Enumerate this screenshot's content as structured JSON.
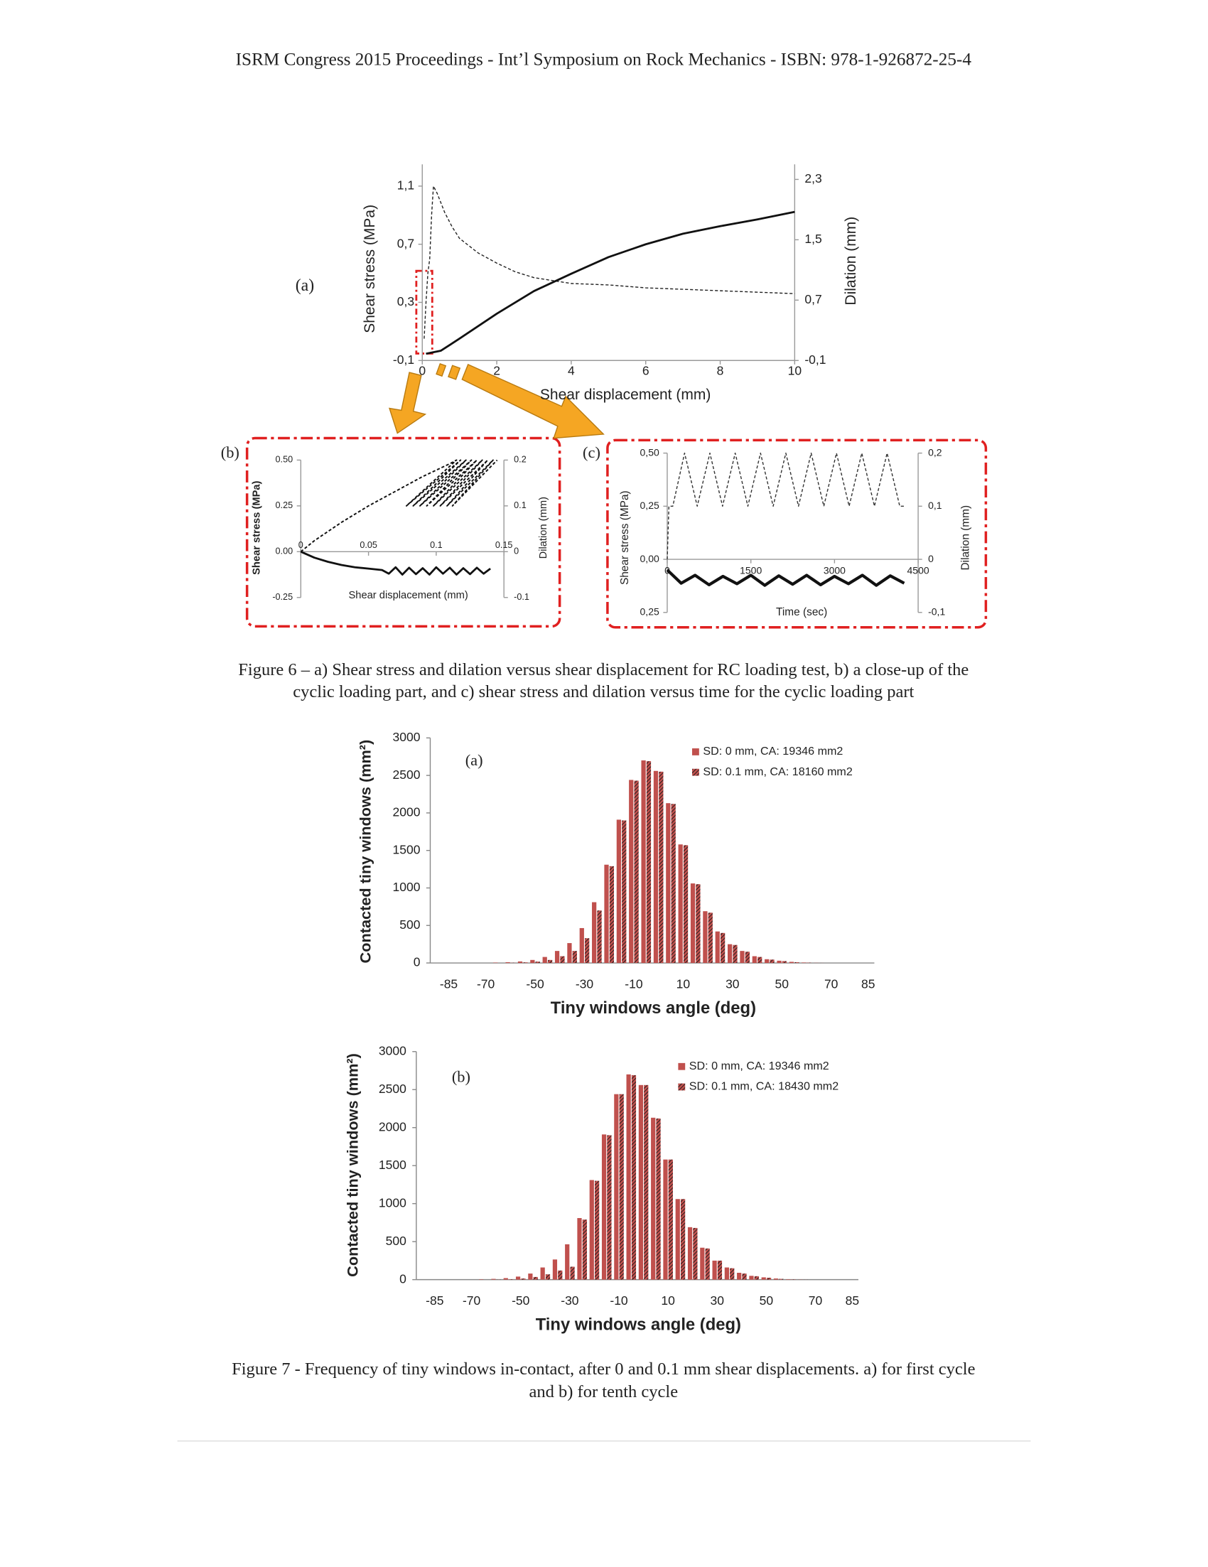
{
  "header": "ISRM Congress 2015 Proceedings - Int’l Symposium on Rock Mechanics - ISBN: 978-1-926872-25-4",
  "chart_data": [
    {
      "type": "line",
      "panel_label": "(a)",
      "x_label": "Shear displacement (mm)",
      "y_label": "Shear stress (MPa)",
      "y2_label": "Dilation (mm)",
      "xlim": [
        0,
        10
      ],
      "xticks": [
        0,
        2,
        4,
        6,
        8,
        10
      ],
      "ylim": [
        -0.1,
        1.25
      ],
      "yticks": [
        {
          "value": -0.1,
          "label": "-0,1"
        },
        {
          "value": 0.3,
          "label": "0,3"
        },
        {
          "value": 0.7,
          "label": "0,7"
        },
        {
          "value": 1.1,
          "label": "1,1"
        }
      ],
      "y2lim": [
        -0.1,
        2.5
      ],
      "y2ticks": [
        {
          "value": -0.1,
          "label": "-0,1"
        },
        {
          "value": 0.7,
          "label": "0,7"
        },
        {
          "value": 1.5,
          "label": "1,5"
        },
        {
          "value": 2.3,
          "label": "2,3"
        }
      ],
      "series": [
        {
          "style": "dashed",
          "color": "#222222",
          "x": [
            0.05,
            0.1,
            0.15,
            0.2,
            0.25,
            0.3,
            0.4,
            0.6,
            0.8,
            1,
            1.5,
            2,
            2.5,
            3,
            3.5,
            4,
            5,
            6,
            7,
            8,
            9,
            10
          ],
          "values": [
            0.05,
            0.3,
            0.5,
            0.6,
            0.9,
            1.1,
            1.05,
            0.92,
            0.82,
            0.74,
            0.64,
            0.57,
            0.51,
            0.47,
            0.45,
            0.43,
            0.42,
            0.4,
            0.39,
            0.38,
            0.37,
            0.36
          ]
        },
        {
          "style": "solid",
          "axis": "y2",
          "color": "#111111",
          "x": [
            0.1,
            0.5,
            1,
            2,
            3,
            4,
            5,
            6,
            7,
            8,
            9,
            10
          ],
          "values": [
            -0.01,
            0.03,
            0.19,
            0.52,
            0.82,
            1.05,
            1.27,
            1.44,
            1.58,
            1.68,
            1.77,
            1.87
          ]
        }
      ]
    },
    {
      "type": "line",
      "panel_label": "(b)",
      "x_label": "Shear displacement (mm)",
      "y_label": "Shear stress (MPa)",
      "y2_label": "Dilation (mm)",
      "xlim": [
        0,
        0.15
      ],
      "xticks": [
        0,
        0.05,
        0.1,
        0.15
      ],
      "ylim": [
        -0.25,
        0.5
      ],
      "yticks": [
        -0.25,
        {
          "value": 0,
          "label": "0.00"
        },
        0.25,
        {
          "value": 0.5,
          "label": "0.50"
        }
      ],
      "y2lim": [
        -0.1,
        0.2
      ],
      "y2ticks": [
        -0.1,
        0,
        0.1,
        0.2
      ],
      "series": [
        {
          "style": "dashed",
          "color": "#111111",
          "x": [
            0,
            0.01,
            0.03,
            0.05,
            0.07,
            0.09,
            0.11,
            0.115,
            0.078,
            0.118,
            0.083,
            0.122,
            0.088,
            0.126,
            0.093,
            0.13,
            0.098,
            0.134,
            0.103,
            0.138,
            0.108,
            0.142,
            0.112,
            0.145
          ],
          "values": [
            0,
            0.06,
            0.16,
            0.25,
            0.33,
            0.41,
            0.48,
            0.5,
            0.25,
            0.5,
            0.25,
            0.5,
            0.25,
            0.5,
            0.25,
            0.5,
            0.25,
            0.5,
            0.25,
            0.5,
            0.25,
            0.5,
            0.25,
            0.5
          ]
        },
        {
          "style": "solid",
          "axis": "y2",
          "color": "#111111",
          "x": [
            0,
            0.01,
            0.02,
            0.03,
            0.04,
            0.05,
            0.06,
            0.065,
            0.07,
            0.075,
            0.08,
            0.085,
            0.09,
            0.095,
            0.1,
            0.105,
            0.11,
            0.115,
            0.12,
            0.125,
            0.13,
            0.135,
            0.14
          ],
          "values": [
            0,
            -0.013,
            -0.022,
            -0.029,
            -0.034,
            -0.037,
            -0.04,
            -0.048,
            -0.034,
            -0.05,
            -0.035,
            -0.049,
            -0.036,
            -0.05,
            -0.034,
            -0.048,
            -0.035,
            -0.05,
            -0.036,
            -0.049,
            -0.035,
            -0.048,
            -0.037
          ]
        }
      ]
    },
    {
      "type": "line",
      "panel_label": "(c)",
      "x_label": "Time (sec)",
      "y_label": "Shear stress (MPa)",
      "y2_label": "Dilation (mm)",
      "xlim": [
        0,
        4500
      ],
      "xticks": [
        0,
        1500,
        3000,
        4500
      ],
      "ylim": [
        -0.25,
        0.5
      ],
      "yticks": [
        {
          "value": -0.25,
          "label": "0,25"
        },
        {
          "value": 0,
          "label": "0,00"
        },
        {
          "value": 0.25,
          "label": "0,25"
        },
        {
          "value": 0.5,
          "label": "0,50"
        }
      ],
      "y2lim": [
        -0.1,
        0.2
      ],
      "y2ticks": [
        {
          "value": -0.1,
          "label": "-0,1"
        },
        0,
        {
          "value": 0.1,
          "label": "0,1"
        },
        {
          "value": 0.2,
          "label": "0,2"
        }
      ],
      "series": [
        {
          "style": "dashed",
          "color": "#333333",
          "x": [
            0,
            30,
            100,
            311,
            538,
            765,
            992,
            1219,
            1446,
            1673,
            1900,
            2127,
            2354,
            2581,
            2808,
            3035,
            3262,
            3489,
            3716,
            3943,
            4170,
            4250
          ],
          "values": [
            0,
            0.25,
            0.25,
            0.5,
            0.25,
            0.5,
            0.25,
            0.5,
            0.25,
            0.5,
            0.25,
            0.5,
            0.25,
            0.5,
            0.25,
            0.5,
            0.25,
            0.5,
            0.25,
            0.5,
            0.25,
            0.25
          ]
        },
        {
          "style": "solid",
          "axis": "y2",
          "color": "#111111",
          "x": [
            0,
            250,
            500,
            750,
            1000,
            1250,
            1500,
            1750,
            2000,
            2250,
            2500,
            2750,
            3000,
            3250,
            3500,
            3750,
            4000,
            4250
          ],
          "values": [
            -0.02,
            -0.045,
            -0.03,
            -0.048,
            -0.032,
            -0.046,
            -0.03,
            -0.049,
            -0.031,
            -0.047,
            -0.03,
            -0.048,
            -0.032,
            -0.046,
            -0.03,
            -0.049,
            -0.031,
            -0.045
          ]
        }
      ]
    },
    {
      "type": "bar",
      "panel_label": "(a)",
      "x_label": "Tiny windows angle (deg)",
      "y_label": "Contacted tiny windows (mm²)",
      "categories": [
        null,
        "-85",
        null,
        null,
        "-70",
        null,
        null,
        null,
        "-50",
        null,
        null,
        null,
        "-30",
        null,
        null,
        null,
        "-10",
        null,
        null,
        null,
        "10",
        null,
        null,
        null,
        "30",
        null,
        null,
        null,
        "50",
        null,
        null,
        null,
        "70",
        null,
        null,
        "85"
      ],
      "ylim": [
        0,
        3000
      ],
      "yticks": [
        0,
        500,
        1000,
        1500,
        2000,
        2500,
        3000
      ],
      "series": [
        {
          "name": "SD: 0 mm, CA: 19346 mm2",
          "color": "#c0504d",
          "hatch": false,
          "values": [
            0,
            0,
            0,
            0,
            0,
            5,
            10,
            20,
            40,
            80,
            160,
            265,
            465,
            810,
            1310,
            1910,
            2440,
            2700,
            2560,
            2130,
            1580,
            1060,
            690,
            420,
            250,
            160,
            90,
            50,
            30,
            15,
            6,
            2,
            0,
            0,
            0,
            0
          ]
        },
        {
          "name": "SD: 0.1 mm, CA: 18160 mm2",
          "color": "#c0504d",
          "hatch": true,
          "values": [
            0,
            0,
            0,
            0,
            0,
            0,
            3,
            8,
            18,
            40,
            90,
            160,
            330,
            700,
            1290,
            1900,
            2430,
            2690,
            2550,
            2120,
            1570,
            1050,
            670,
            400,
            240,
            150,
            80,
            45,
            25,
            10,
            4,
            1,
            0,
            0,
            0,
            0
          ]
        }
      ]
    },
    {
      "type": "bar",
      "panel_label": "(b)",
      "x_label": "Tiny windows angle (deg)",
      "y_label": "Contacted tiny windows (mm²)",
      "categories": [
        null,
        "-85",
        null,
        null,
        "-70",
        null,
        null,
        null,
        "-50",
        null,
        null,
        null,
        "-30",
        null,
        null,
        null,
        "-10",
        null,
        null,
        null,
        "10",
        null,
        null,
        null,
        "30",
        null,
        null,
        null,
        "50",
        null,
        null,
        null,
        "70",
        null,
        null,
        "85"
      ],
      "ylim": [
        0,
        3000
      ],
      "yticks": [
        0,
        500,
        1000,
        1500,
        2000,
        2500,
        3000
      ],
      "series": [
        {
          "name": "SD: 0 mm, CA: 19346 mm2",
          "color": "#c0504d",
          "hatch": false,
          "values": [
            0,
            0,
            0,
            0,
            0,
            5,
            10,
            20,
            40,
            80,
            160,
            265,
            465,
            810,
            1310,
            1910,
            2440,
            2700,
            2560,
            2130,
            1580,
            1060,
            690,
            420,
            250,
            160,
            90,
            50,
            30,
            15,
            6,
            2,
            0,
            0,
            0,
            0
          ]
        },
        {
          "name": "SD: 0.1 mm, CA: 18430 mm2",
          "color": "#c0504d",
          "hatch": true,
          "values": [
            0,
            0,
            0,
            0,
            0,
            0,
            2,
            6,
            15,
            35,
            70,
            120,
            170,
            790,
            1300,
            1900,
            2440,
            2690,
            2560,
            2120,
            1580,
            1060,
            680,
            410,
            250,
            150,
            80,
            45,
            25,
            10,
            4,
            1,
            0,
            0,
            0,
            0
          ]
        }
      ]
    }
  ],
  "figure_6_caption": [
    "Figure 6 – a) Shear stress and dilation versus shear displacement for RC loading test, b) a close-up of the",
    "cyclic loading part, and c) shear stress and dilation versus time for the cyclic loading part"
  ],
  "figure_7_caption": [
    "Figure 7 - Frequency of tiny windows in-contact, after 0 and 0.1 mm shear displacements. a) for first cycle",
    "and b) for tenth cycle"
  ]
}
